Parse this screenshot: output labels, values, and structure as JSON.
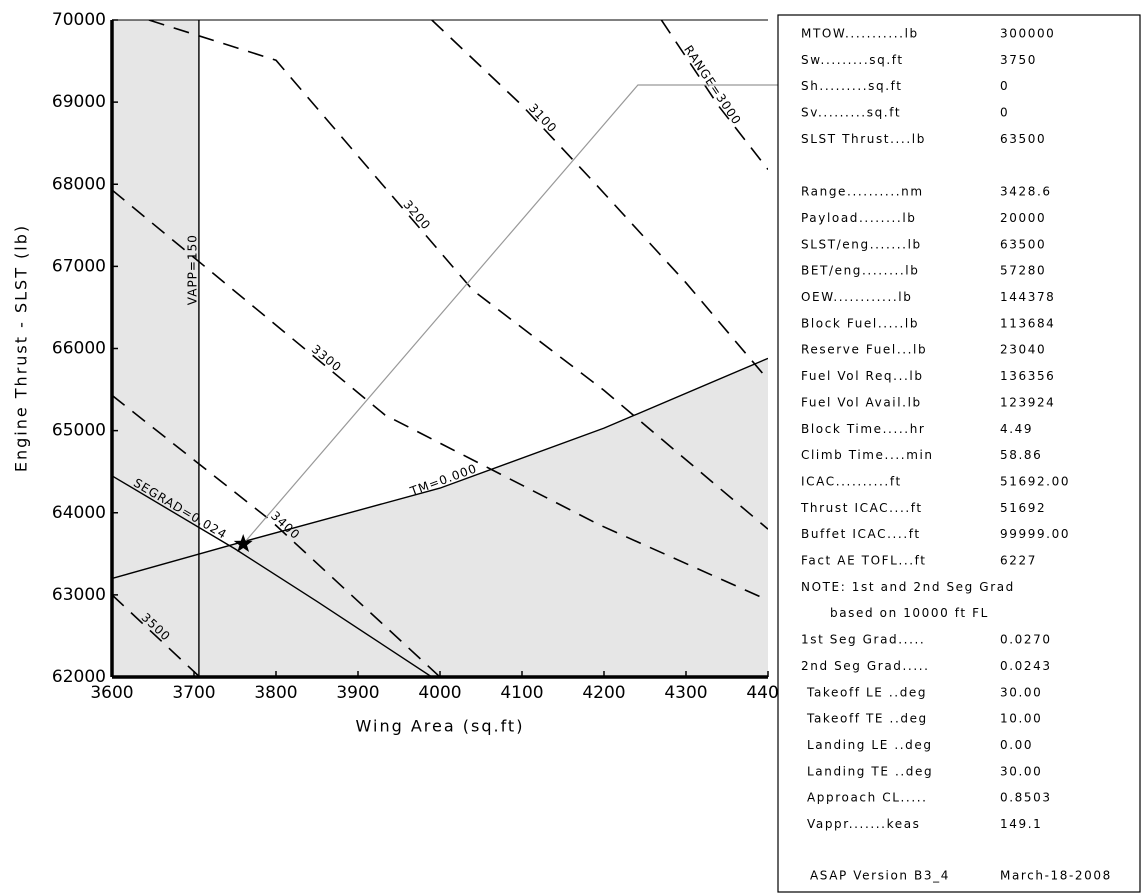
{
  "chart_data": {
    "type": "line",
    "xlabel": "Wing Area (sq.ft)",
    "ylabel": "Engine Thrust - SLST (lb)",
    "xlim": [
      3600,
      4400
    ],
    "ylim": [
      62000,
      70000
    ],
    "xticks": [
      3600,
      3700,
      3800,
      3900,
      4000,
      4100,
      4200,
      4300,
      4400
    ],
    "yticks": [
      62000,
      63000,
      64000,
      65000,
      66000,
      67000,
      68000,
      69000,
      70000
    ],
    "series": [
      {
        "name": "RANGE=3000",
        "color": "#000000",
        "dashed": true,
        "x": [
          4270,
          4340,
          4400
        ],
        "values": [
          70000,
          68950,
          68180
        ]
      },
      {
        "name": "3100",
        "color": "#000000",
        "dashed": true,
        "x": [
          3990,
          4100,
          4190,
          4300,
          4400
        ],
        "values": [
          70000,
          68960,
          68000,
          66800,
          65620
        ]
      },
      {
        "name": "3200",
        "color": "#000000",
        "dashed": true,
        "x": [
          3645,
          3800,
          4040,
          4200,
          4400
        ],
        "values": [
          70000,
          69510,
          66710,
          65490,
          63800
        ]
      },
      {
        "name": "3300",
        "color": "#000000",
        "dashed": true,
        "x": [
          3600,
          3933,
          4195,
          4400
        ],
        "values": [
          67930,
          65190,
          63850,
          62935
        ]
      },
      {
        "name": "3400",
        "color": "#000000",
        "dashed": true,
        "x": [
          3600,
          3793,
          4000
        ],
        "values": [
          65430,
          63910,
          62000
        ]
      },
      {
        "name": "3500",
        "color": "#000000",
        "dashed": true,
        "x": [
          3600,
          3707
        ],
        "values": [
          63000,
          62000
        ]
      },
      {
        "name": "TM=0.000",
        "color": "#000000",
        "dashed": false,
        "x": [
          3600,
          3750,
          4000,
          4200,
          4400
        ],
        "values": [
          63200,
          63620,
          64300,
          65030,
          65880
        ]
      },
      {
        "name": "SEGRAD=0.024",
        "color": "#000000",
        "dashed": false,
        "x": [
          3600,
          3750,
          3850,
          3990
        ],
        "values": [
          64450,
          63560,
          62920,
          62000
        ]
      },
      {
        "name": "VAPP=150",
        "color": "#000000",
        "dashed": false,
        "x": [
          3706,
          3706
        ],
        "values": [
          62000,
          70000
        ]
      }
    ],
    "marker": {
      "x": 3760,
      "y": 63620
    },
    "shade_color": "#e6e6e6"
  },
  "panel": {
    "aircraft": [
      [
        "MTOW...........lb",
        "300000"
      ],
      [
        "Sw.........sq.ft",
        "3750"
      ],
      [
        "Sh.........sq.ft",
        "0"
      ],
      [
        "Sv.........sq.ft",
        "0"
      ],
      [
        "SLST Thrust....lb",
        "63500"
      ]
    ],
    "performance": [
      [
        "Range..........nm",
        "3428.6"
      ],
      [
        "Payload........lb",
        "20000"
      ],
      [
        "SLST/eng.......lb",
        "63500"
      ],
      [
        "BET/eng........lb",
        "57280"
      ],
      [
        "OEW............lb",
        "144378"
      ],
      [
        "Block Fuel.....lb",
        "113684"
      ],
      [
        "Reserve Fuel...lb",
        "23040"
      ],
      [
        "Fuel Vol Req...lb",
        "136356"
      ],
      [
        "Fuel Vol Avail.lb",
        "123924"
      ],
      [
        "Block Time.....hr",
        "4.49"
      ],
      [
        "Climb Time....min",
        "58.86"
      ],
      [
        "ICAC..........ft",
        "51692.00"
      ],
      [
        "Thrust ICAC....ft",
        "51692"
      ],
      [
        "Buffet ICAC....ft",
        "99999.00"
      ],
      [
        "Fact AE TOFL...ft",
        "6227"
      ]
    ],
    "note": [
      "NOTE: 1st and 2nd Seg Grad",
      "based on 10000  ft FL"
    ],
    "settings": [
      [
        "1st Seg Grad.....",
        "0.0270"
      ],
      [
        "2nd Seg Grad.....",
        "0.0243"
      ],
      [
        "Takeoff LE ..deg",
        "30.00"
      ],
      [
        "Takeoff TE ..deg",
        "10.00"
      ],
      [
        "Landing LE ..deg",
        "0.00"
      ],
      [
        "Landing TE ..deg",
        "30.00"
      ],
      [
        "Approach CL.....",
        "0.8503"
      ],
      [
        "Vappr.......keas",
        "149.1"
      ]
    ],
    "footer": [
      "ASAP Version B3_4",
      "March-18-2008"
    ]
  }
}
